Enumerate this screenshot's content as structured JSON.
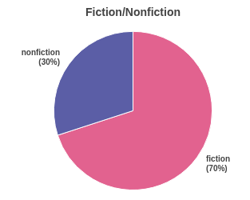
{
  "chart_data": {
    "type": "pie",
    "title": "Fiction/Nonfiction",
    "categories": [
      "fiction",
      "nonfiction"
    ],
    "values": [
      70,
      30
    ],
    "value_labels": [
      "(70%)",
      "(30%)"
    ],
    "colors": [
      "#e2628f",
      "#5b5ea6"
    ],
    "data_labels": true
  }
}
